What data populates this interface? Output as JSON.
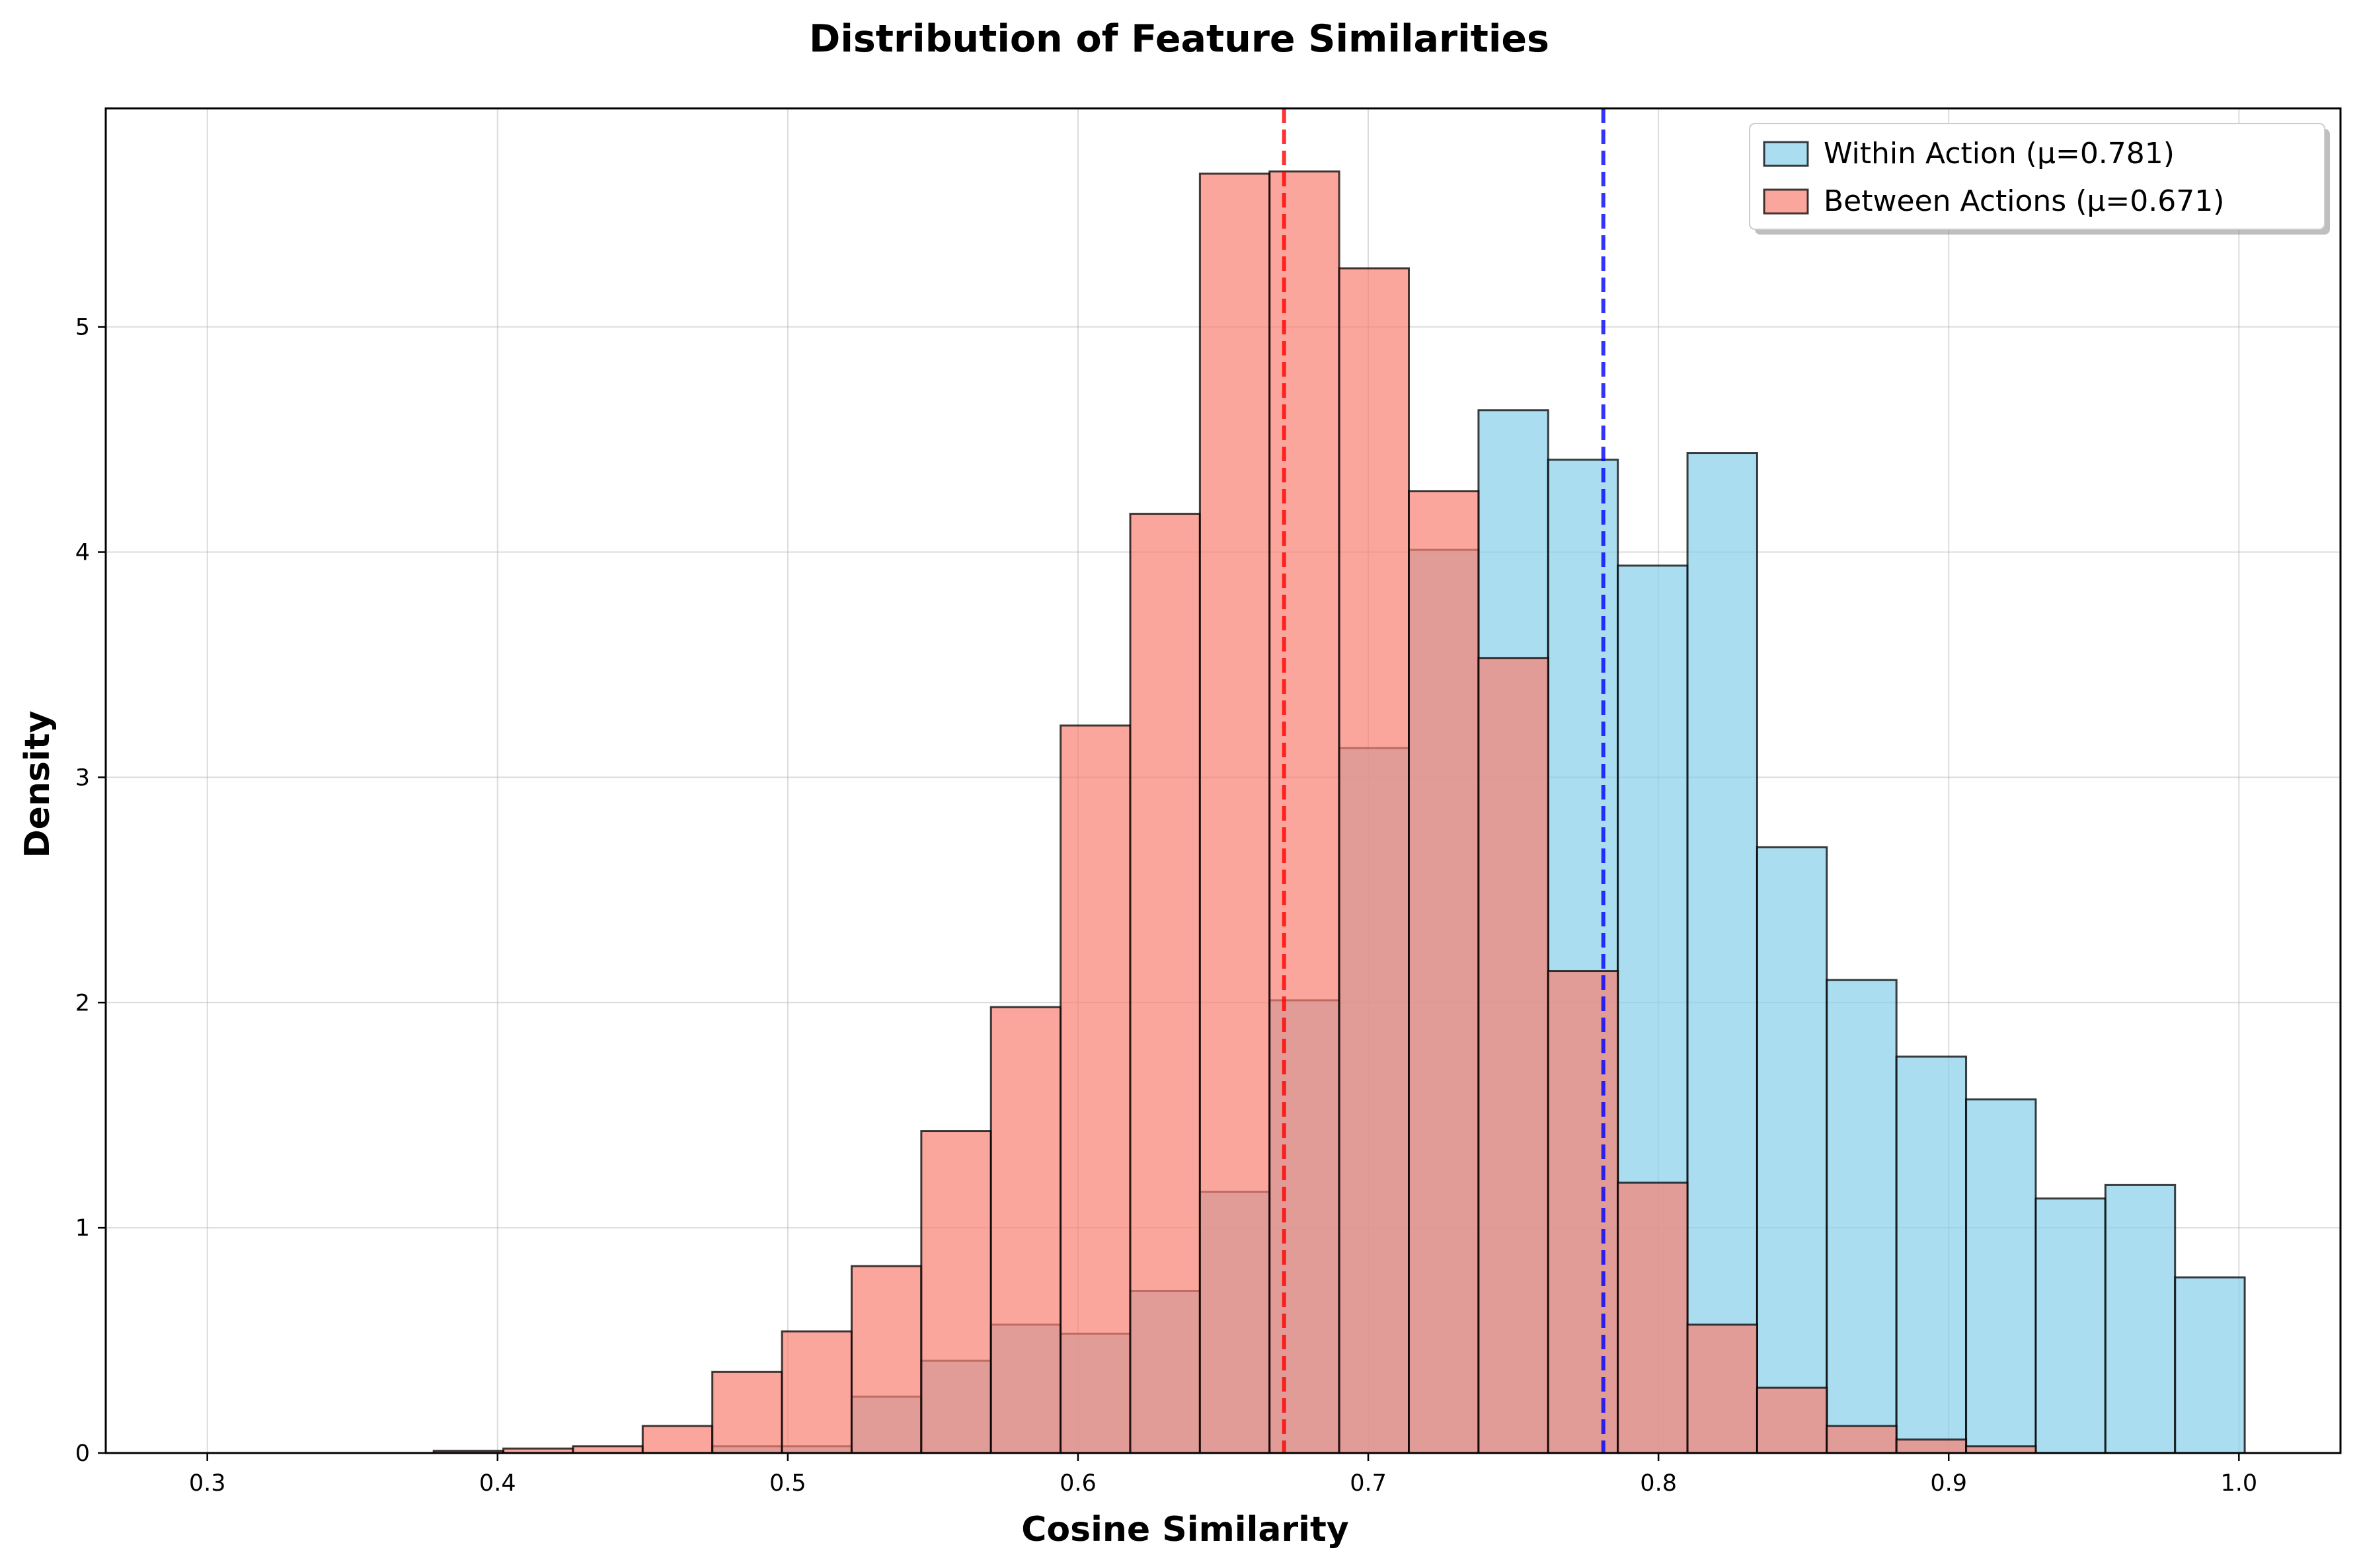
{
  "chart_data": {
    "type": "histogram",
    "title": "Distribution of Feature Similarities",
    "xlabel": "Cosine Similarity",
    "ylabel": "Density",
    "xlim": [
      0.265,
      1.035
    ],
    "ylim": [
      0,
      5.97
    ],
    "xticks": [
      "0.3",
      "0.4",
      "0.5",
      "0.6",
      "0.7",
      "0.8",
      "0.9",
      "1.0"
    ],
    "yticks": [
      "0",
      "1",
      "2",
      "3",
      "4",
      "5"
    ],
    "grid": true,
    "bin_edges": [
      0.3,
      0.324,
      0.348,
      0.372,
      0.396,
      0.42,
      0.444,
      0.468,
      0.492,
      0.516,
      0.54,
      0.564,
      0.588,
      0.612,
      0.636,
      0.66,
      0.684,
      0.708,
      0.732,
      0.756,
      0.78,
      0.804,
      0.828,
      0.852,
      0.876,
      0.9,
      0.924,
      0.948,
      0.972,
      0.996
    ],
    "series": [
      {
        "name": "Within Action",
        "legend_label": "Within Action (μ=0.781)",
        "color": "#87ceeb",
        "mean": 0.781,
        "mean_line_color": "#0000ff",
        "bin_start": 0.306,
        "bin_width": 0.024,
        "values": [
          0.0,
          0.0,
          0.0,
          0.0,
          0.0,
          0.0,
          0.0,
          0.03,
          0.03,
          0.25,
          0.41,
          0.57,
          0.53,
          0.72,
          1.16,
          2.01,
          3.13,
          4.01,
          4.63,
          4.41,
          3.94,
          4.44,
          2.69,
          2.1,
          1.76,
          1.57,
          1.13,
          1.19,
          0.78
        ]
      },
      {
        "name": "Between Actions",
        "legend_label": "Between Actions (μ=0.671)",
        "color": "#fa8072",
        "mean": 0.671,
        "mean_line_color": "#ff0000",
        "bin_start": 0.306,
        "bin_width": 0.024,
        "values": [
          0.0,
          0.0,
          0.0,
          0.01,
          0.02,
          0.03,
          0.12,
          0.36,
          0.54,
          0.83,
          1.43,
          1.98,
          3.23,
          4.17,
          5.68,
          5.69,
          5.26,
          4.27,
          3.53,
          2.14,
          1.2,
          0.57,
          0.29,
          0.12,
          0.06,
          0.03,
          0.0,
          0.0,
          0.0
        ]
      }
    ],
    "legend_position": "top-right"
  }
}
